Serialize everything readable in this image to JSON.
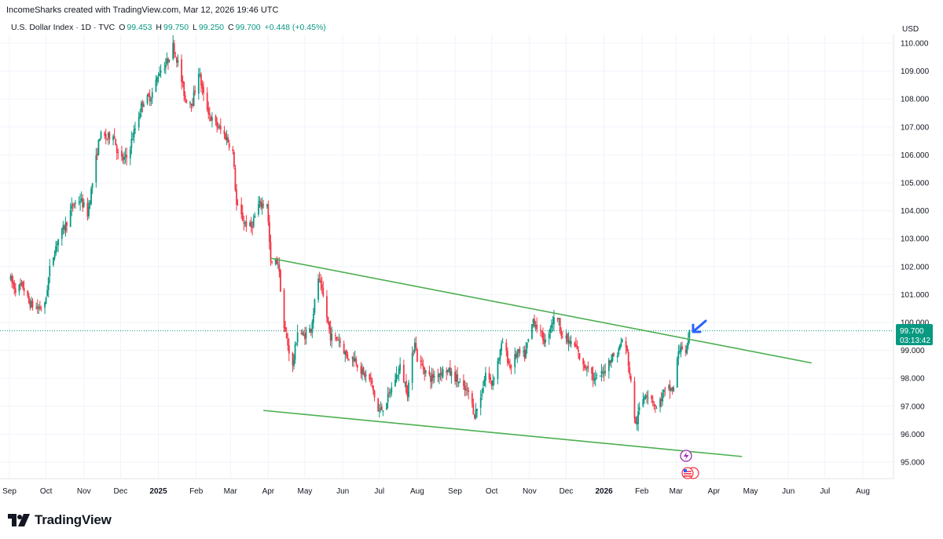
{
  "header": {
    "attribution": "IncomeSharks created with TradingView.com, Mar 12, 2026 19:46 UTC"
  },
  "legend": {
    "symbol": "U.S. Dollar Index · 1D · TVC",
    "open_label": "O",
    "open": "99.453",
    "high_label": "H",
    "high": "99.750",
    "low_label": "L",
    "low": "99.250",
    "close_label": "C",
    "close": "99.700",
    "change": "+0.448 (+0.45%)"
  },
  "price_tag": {
    "price": "99.700",
    "countdown": "03:13:42"
  },
  "brand": {
    "name": "TradingView",
    "logo_text": "TV"
  },
  "colors": {
    "up": "#089981",
    "down": "#f23645",
    "trendline": "#4caf50",
    "arrow": "#2962ff",
    "tag": "#089981"
  },
  "chart_data": {
    "type": "candlestick",
    "title": "U.S. Dollar Index · 1D · TVC",
    "currency": "USD",
    "ylim": [
      94.55,
      110.8
    ],
    "yticks": [
      "95.000",
      "96.000",
      "97.000",
      "98.000",
      "99.000",
      "100.000",
      "101.000",
      "102.000",
      "103.000",
      "104.000",
      "105.000",
      "106.000",
      "107.000",
      "108.000",
      "109.000",
      "110.000"
    ],
    "xlim": [
      "2024-09-01",
      "2026-08-31"
    ],
    "xticks": [
      {
        "label": "Sep",
        "date": "2024-09-01",
        "bold": false
      },
      {
        "label": "Oct",
        "date": "2024-10-01",
        "bold": false
      },
      {
        "label": "Nov",
        "date": "2024-11-01",
        "bold": false
      },
      {
        "label": "Dec",
        "date": "2024-12-01",
        "bold": false
      },
      {
        "label": "2025",
        "date": "2025-01-01",
        "bold": true
      },
      {
        "label": "Feb",
        "date": "2025-02-01",
        "bold": false
      },
      {
        "label": "Mar",
        "date": "2025-03-01",
        "bold": false
      },
      {
        "label": "Apr",
        "date": "2025-04-01",
        "bold": false
      },
      {
        "label": "May",
        "date": "2025-05-01",
        "bold": false
      },
      {
        "label": "Jun",
        "date": "2025-06-01",
        "bold": false
      },
      {
        "label": "Jul",
        "date": "2025-07-01",
        "bold": false
      },
      {
        "label": "Aug",
        "date": "2025-08-01",
        "bold": false
      },
      {
        "label": "Sep",
        "date": "2025-09-01",
        "bold": false
      },
      {
        "label": "Oct",
        "date": "2025-10-01",
        "bold": false
      },
      {
        "label": "Nov",
        "date": "2025-11-01",
        "bold": false
      },
      {
        "label": "Dec",
        "date": "2025-12-01",
        "bold": false
      },
      {
        "label": "2026",
        "date": "2026-01-01",
        "bold": true
      },
      {
        "label": "Feb",
        "date": "2026-02-01",
        "bold": false
      },
      {
        "label": "Mar",
        "date": "2026-03-01",
        "bold": false
      },
      {
        "label": "Apr",
        "date": "2026-04-01",
        "bold": false
      },
      {
        "label": "May",
        "date": "2026-05-01",
        "bold": false
      },
      {
        "label": "Jun",
        "date": "2026-06-01",
        "bold": false
      },
      {
        "label": "Jul",
        "date": "2026-07-01",
        "bold": false
      },
      {
        "label": "Aug",
        "date": "2026-08-01",
        "bold": false
      }
    ],
    "price_path": [
      [
        "2024-09-01",
        101.6
      ],
      [
        "2024-09-06",
        101.2
      ],
      [
        "2024-09-12",
        101.3
      ],
      [
        "2024-09-17",
        100.7
      ],
      [
        "2024-09-24",
        100.5
      ],
      [
        "2024-09-30",
        100.6
      ],
      [
        "2024-10-04",
        101.9
      ],
      [
        "2024-10-10",
        102.9
      ],
      [
        "2024-10-17",
        103.5
      ],
      [
        "2024-10-23",
        104.2
      ],
      [
        "2024-10-29",
        104.4
      ],
      [
        "2024-11-04",
        103.9
      ],
      [
        "2024-11-08",
        105.0
      ],
      [
        "2024-11-14",
        106.7
      ],
      [
        "2024-11-20",
        106.6
      ],
      [
        "2024-11-25",
        106.8
      ],
      [
        "2024-11-30",
        105.8
      ],
      [
        "2024-12-06",
        105.9
      ],
      [
        "2024-12-12",
        106.8
      ],
      [
        "2024-12-19",
        107.9
      ],
      [
        "2024-12-26",
        108.1
      ],
      [
        "2025-01-02",
        109.0
      ],
      [
        "2025-01-08",
        109.3
      ],
      [
        "2025-01-13",
        109.9
      ],
      [
        "2025-01-17",
        109.3
      ],
      [
        "2025-01-23",
        108.0
      ],
      [
        "2025-01-29",
        107.9
      ],
      [
        "2025-02-03",
        109.0
      ],
      [
        "2025-02-07",
        108.1
      ],
      [
        "2025-02-13",
        107.3
      ],
      [
        "2025-02-19",
        107.0
      ],
      [
        "2025-02-26",
        106.6
      ],
      [
        "2025-03-03",
        106.1
      ],
      [
        "2025-03-06",
        104.2
      ],
      [
        "2025-03-12",
        103.6
      ],
      [
        "2025-03-18",
        103.4
      ],
      [
        "2025-03-24",
        104.2
      ],
      [
        "2025-03-31",
        104.3
      ],
      [
        "2025-04-03",
        102.1
      ],
      [
        "2025-04-09",
        102.2
      ],
      [
        "2025-04-14",
        99.8
      ],
      [
        "2025-04-21",
        98.4
      ],
      [
        "2025-04-25",
        99.7
      ],
      [
        "2025-04-30",
        99.5
      ],
      [
        "2025-05-06",
        99.8
      ],
      [
        "2025-05-12",
        101.6
      ],
      [
        "2025-05-16",
        100.9
      ],
      [
        "2025-05-22",
        99.5
      ],
      [
        "2025-05-29",
        99.4
      ],
      [
        "2025-06-04",
        98.8
      ],
      [
        "2025-06-11",
        98.7
      ],
      [
        "2025-06-17",
        98.2
      ],
      [
        "2025-06-24",
        97.9
      ],
      [
        "2025-06-30",
        96.8
      ],
      [
        "2025-07-03",
        96.9
      ],
      [
        "2025-07-08",
        97.3
      ],
      [
        "2025-07-14",
        98.0
      ],
      [
        "2025-07-18",
        98.4
      ],
      [
        "2025-07-24",
        97.5
      ],
      [
        "2025-07-30",
        99.4
      ],
      [
        "2025-08-01",
        98.7
      ],
      [
        "2025-08-07",
        98.3
      ],
      [
        "2025-08-12",
        98.0
      ],
      [
        "2025-08-19",
        98.2
      ],
      [
        "2025-08-25",
        98.3
      ],
      [
        "2025-09-02",
        98.0
      ],
      [
        "2025-09-08",
        97.6
      ],
      [
        "2025-09-12",
        97.5
      ],
      [
        "2025-09-17",
        96.7
      ],
      [
        "2025-09-22",
        97.3
      ],
      [
        "2025-09-26",
        98.2
      ],
      [
        "2025-10-01",
        97.8
      ],
      [
        "2025-10-06",
        98.6
      ],
      [
        "2025-10-10",
        99.3
      ],
      [
        "2025-10-16",
        98.4
      ],
      [
        "2025-10-22",
        98.9
      ],
      [
        "2025-10-28",
        98.8
      ],
      [
        "2025-11-04",
        100.1
      ],
      [
        "2025-11-10",
        99.6
      ],
      [
        "2025-11-14",
        99.3
      ],
      [
        "2025-11-19",
        100.0
      ],
      [
        "2025-11-24",
        100.2
      ],
      [
        "2025-11-28",
        99.5
      ],
      [
        "2025-12-03",
        99.3
      ],
      [
        "2025-12-09",
        99.1
      ],
      [
        "2025-12-15",
        98.4
      ],
      [
        "2025-12-19",
        98.5
      ],
      [
        "2025-12-24",
        97.9
      ],
      [
        "2025-12-31",
        98.2
      ],
      [
        "2026-01-06",
        98.7
      ],
      [
        "2026-01-12",
        98.9
      ],
      [
        "2026-01-16",
        99.4
      ],
      [
        "2026-01-20",
        98.9
      ],
      [
        "2026-01-23",
        97.8
      ],
      [
        "2026-01-27",
        96.3
      ],
      [
        "2026-01-30",
        96.9
      ],
      [
        "2026-02-04",
        97.5
      ],
      [
        "2026-02-09",
        97.3
      ],
      [
        "2026-02-13",
        96.9
      ],
      [
        "2026-02-19",
        97.5
      ],
      [
        "2026-02-24",
        97.6
      ],
      [
        "2026-02-27",
        97.6
      ],
      [
        "2026-03-02",
        98.7
      ],
      [
        "2026-03-05",
        99.2
      ],
      [
        "2026-03-09",
        98.8
      ],
      [
        "2026-03-11",
        99.25
      ],
      [
        "2026-03-12",
        99.7
      ]
    ],
    "trendlines": [
      {
        "name": "upper-trendline",
        "from": [
          "2025-04-03",
          102.3
        ],
        "to": [
          "2026-06-20",
          98.55
        ]
      },
      {
        "name": "lower-trendline",
        "from": [
          "2025-03-28",
          96.85
        ],
        "to": [
          "2026-04-24",
          95.2
        ]
      }
    ],
    "current_price": 99.7,
    "price_line": 99.7
  }
}
